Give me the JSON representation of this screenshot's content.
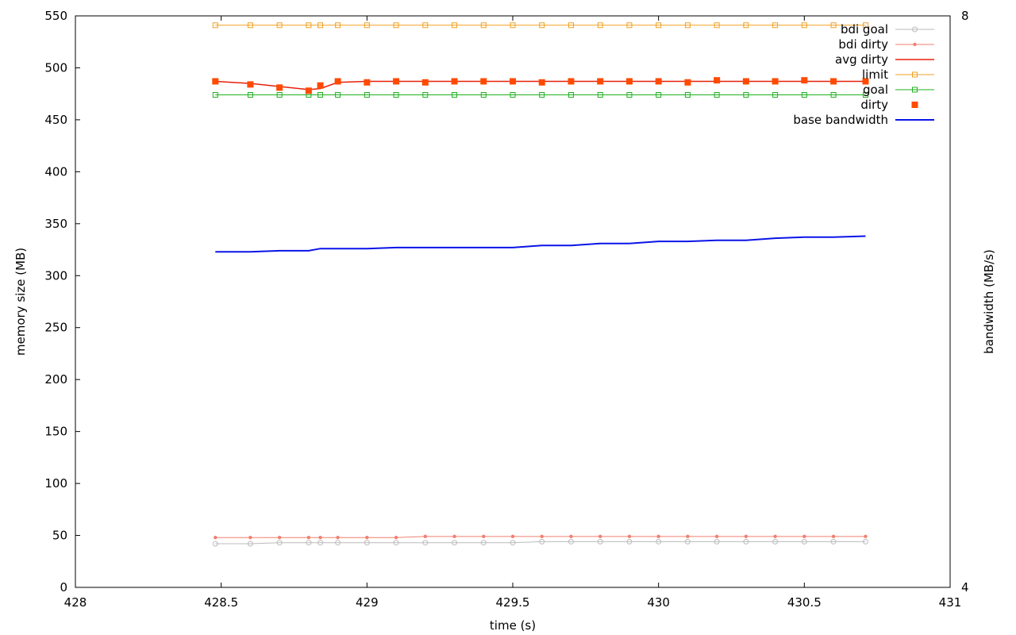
{
  "chart_data": {
    "type": "line",
    "title": "",
    "xlabel": "time (s)",
    "ylabel": "memory size (MB)",
    "y2label": "bandwidth (MB/s)",
    "xlim": [
      428,
      431
    ],
    "ylim": [
      0,
      550
    ],
    "y2lim": [
      4,
      8
    ],
    "xticks": [
      "428",
      "428.5",
      "429",
      "429.5",
      "430",
      "430.5",
      "431"
    ],
    "yticks": [
      "0",
      "50",
      "100",
      "150",
      "200",
      "250",
      "300",
      "350",
      "400",
      "450",
      "500",
      "550"
    ],
    "y2ticks": [
      "4",
      "8"
    ],
    "grid": false,
    "legend_position": "top-right",
    "x": [
      428.48,
      428.6,
      428.7,
      428.8,
      428.84,
      428.9,
      429.0,
      429.1,
      429.2,
      429.3,
      429.4,
      429.5,
      429.6,
      429.7,
      429.8,
      429.9,
      430.0,
      430.1,
      430.2,
      430.3,
      430.4,
      430.5,
      430.6,
      430.71
    ],
    "series": [
      {
        "name": "bdi goal",
        "color": "#bbbbbb",
        "marker": "circle-open",
        "values": [
          42,
          42,
          43,
          43,
          43,
          43,
          43,
          43,
          43,
          43,
          43,
          43,
          44,
          44,
          44,
          44,
          44,
          44,
          44,
          44,
          44,
          44,
          44,
          44
        ]
      },
      {
        "name": "bdi dirty",
        "color": "#f08070",
        "marker": "dot",
        "values": [
          48,
          48,
          48,
          48,
          48,
          48,
          48,
          48,
          49,
          49,
          49,
          49,
          49,
          49,
          49,
          49,
          49,
          49,
          49,
          49,
          49,
          49,
          49,
          49
        ]
      },
      {
        "name": "avg dirty",
        "color": "#e8200a",
        "marker": "none",
        "values": [
          487,
          485,
          482,
          479,
          480,
          486,
          487,
          487,
          487,
          487,
          487,
          487,
          487,
          487,
          487,
          487,
          487,
          487,
          487,
          487,
          487,
          487,
          487,
          487
        ]
      },
      {
        "name": "limit",
        "color": "#f0a020",
        "marker": "square-open",
        "values": [
          541,
          541,
          541,
          541,
          541,
          541,
          541,
          541,
          541,
          541,
          541,
          541,
          541,
          541,
          541,
          541,
          541,
          541,
          541,
          541,
          541,
          541,
          541,
          541
        ]
      },
      {
        "name": "goal",
        "color": "#20b020",
        "marker": "square-open",
        "values": [
          474,
          474,
          474,
          474,
          474,
          474,
          474,
          474,
          474,
          474,
          474,
          474,
          474,
          474,
          474,
          474,
          474,
          474,
          474,
          474,
          474,
          474,
          474,
          474
        ]
      },
      {
        "name": "dirty",
        "color": "#ff4a00",
        "marker": "square-filled",
        "values": [
          487,
          484,
          481,
          478,
          483,
          487,
          486,
          487,
          486,
          487,
          487,
          487,
          486,
          487,
          487,
          487,
          487,
          486,
          488,
          487,
          487,
          488,
          487,
          487
        ]
      },
      {
        "name": "base bandwidth",
        "color": "#0a14e8",
        "marker": "none",
        "values": [
          323,
          323,
          324,
          324,
          326,
          326,
          326,
          327,
          327,
          327,
          327,
          327,
          329,
          329,
          331,
          331,
          333,
          333,
          334,
          334,
          336,
          337,
          337,
          338
        ]
      }
    ]
  }
}
